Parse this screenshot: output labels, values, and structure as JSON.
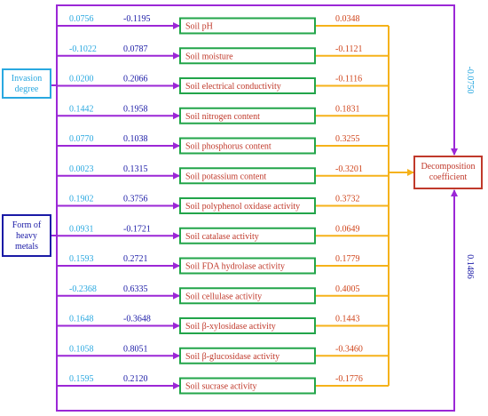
{
  "colors": {
    "invasion": "#29a8e0",
    "heavy": "#1a1aa6",
    "purple": "#9b27d6",
    "orange": "#f5b21a",
    "green": "#22a54a",
    "red": "#c0392b",
    "coef_invasion": "#29a8e0",
    "coef_heavy": "#1a1aa6",
    "coef_out": "#d0451b"
  },
  "sources": {
    "invasion": [
      "Invasion",
      "degree"
    ],
    "heavy": [
      "Form of",
      "heavy",
      "metals"
    ]
  },
  "target": [
    "Decomposition",
    "coefficient"
  ],
  "direct_paths": {
    "invasion": "-0.0750",
    "heavy": "0.1486"
  },
  "mediators": [
    {
      "name": "Soil pH",
      "invasion": "0.0756",
      "heavy": "-0.1195",
      "out": "0.0348"
    },
    {
      "name": "Soil moisture",
      "invasion": "-0.1022",
      "heavy": "0.0787",
      "out": "-0.1121"
    },
    {
      "name": "Soil electrical conductivity",
      "invasion": "0.0200",
      "heavy": "0.2066",
      "out": "-0.1116"
    },
    {
      "name": "Soil nitrogen content",
      "invasion": "0.1442",
      "heavy": "0.1958",
      "out": "0.1831"
    },
    {
      "name": "Soil phosphorus content",
      "invasion": "0.0770",
      "heavy": "0.1038",
      "out": "0.3255"
    },
    {
      "name": "Soil potassium content",
      "invasion": "0.0023",
      "heavy": "0.1315",
      "out": "-0.3201"
    },
    {
      "name": "Soil polyphenol oxidase activity",
      "invasion": "0.1902",
      "heavy": "0.3756",
      "out": "0.3732"
    },
    {
      "name": "Soil catalase activity",
      "invasion": "0.0931",
      "heavy": "-0.1721",
      "out": "0.0649"
    },
    {
      "name": "Soil FDA hydrolase activity",
      "invasion": "0.1593",
      "heavy": "0.2721",
      "out": "0.1779"
    },
    {
      "name": "Soil cellulase activity",
      "invasion": "-0.2368",
      "heavy": "0.6335",
      "out": "0.4005"
    },
    {
      "name": "Soil β-xylosidase activity",
      "invasion": "0.1648",
      "heavy": "-0.3648",
      "out": "0.1443"
    },
    {
      "name": "Soil β-glucosidase activity",
      "invasion": "0.1058",
      "heavy": "0.8051",
      "out": "-0.3460"
    },
    {
      "name": "Soil sucrase activity",
      "invasion": "0.1595",
      "heavy": "0.2120",
      "out": "-0.1776"
    }
  ]
}
